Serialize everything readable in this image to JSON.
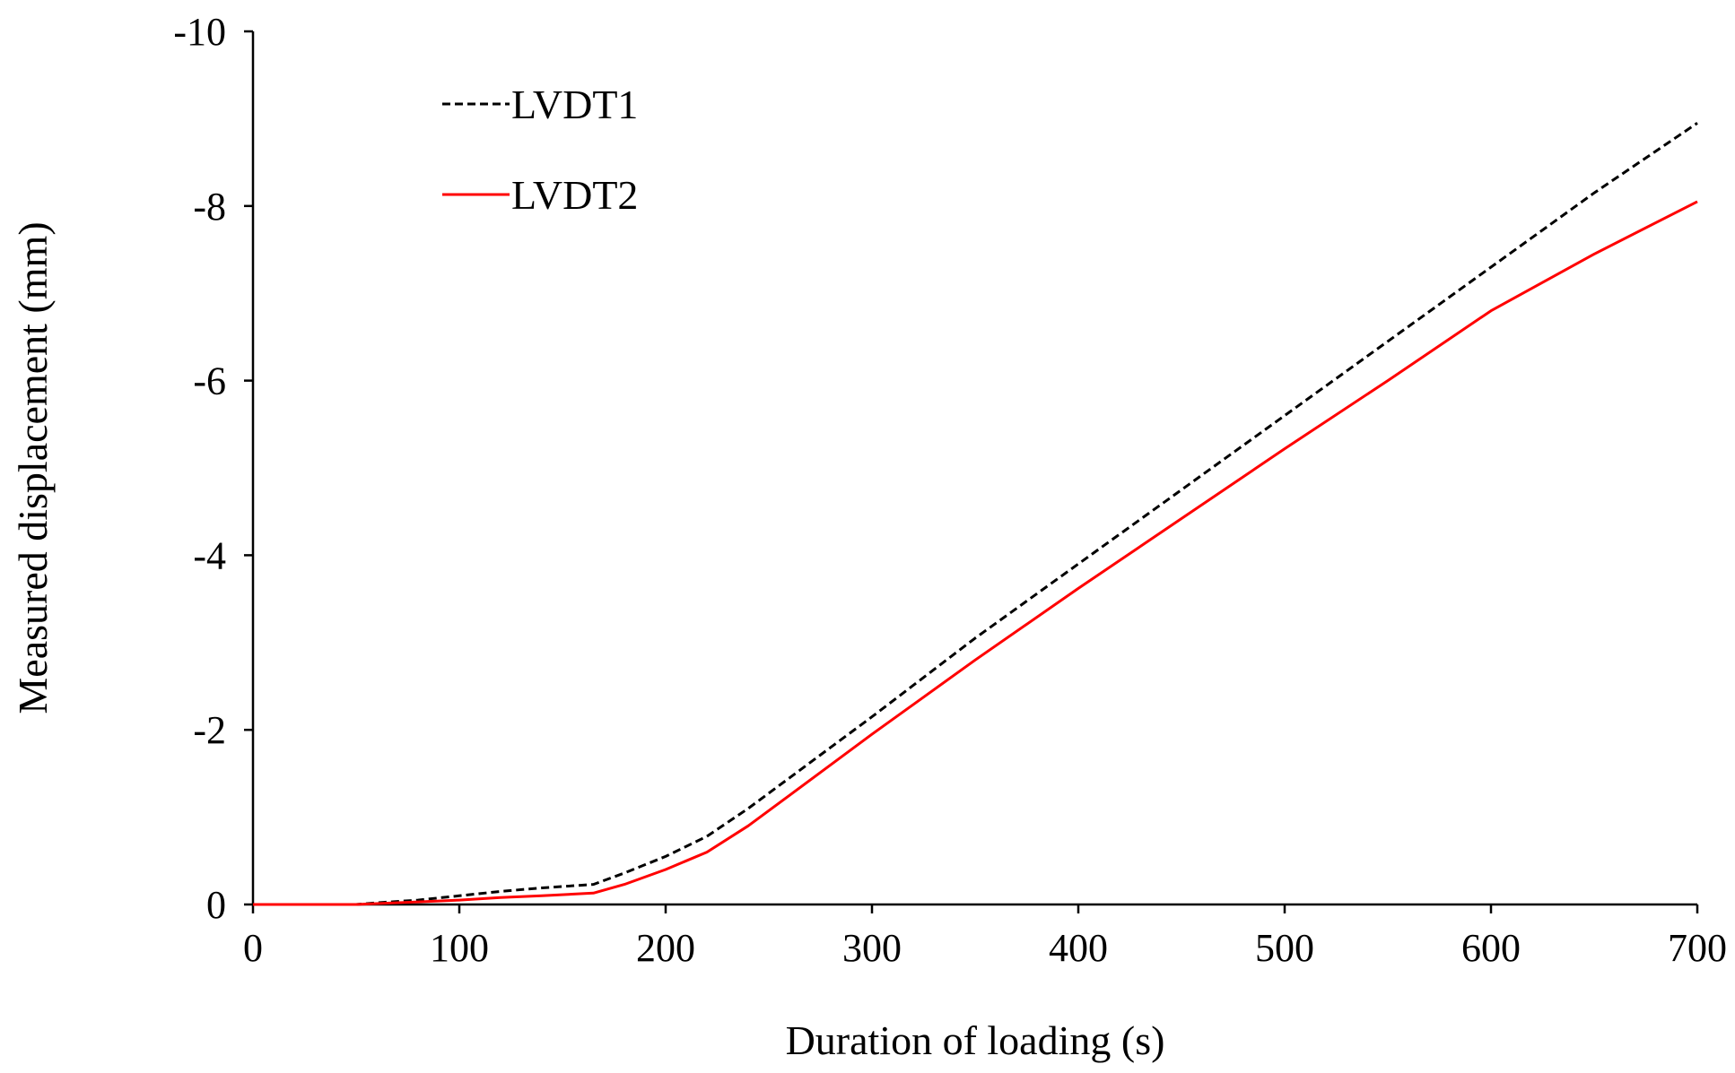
{
  "chart_data": {
    "type": "line",
    "title": "",
    "xlabel": "Duration of loading (s)",
    "ylabel": "Measured displacement (mm)",
    "xlim": [
      0,
      700
    ],
    "ylim": [
      0,
      -10
    ],
    "y_axis_inverted": true,
    "grid": false,
    "legend_position": "top-left",
    "x_ticks": [
      "0",
      "100",
      "200",
      "300",
      "400",
      "500",
      "600",
      "700"
    ],
    "y_ticks": [
      "0",
      "-2",
      "-4",
      "-6",
      "-8",
      "-10"
    ],
    "series": [
      {
        "name": "LVDT1",
        "color": "#000000",
        "style": "dashed",
        "x": [
          0,
          50,
          60,
          80,
          100,
          120,
          140,
          165,
          180,
          200,
          220,
          240,
          260,
          280,
          300,
          350,
          400,
          450,
          500,
          550,
          600,
          650,
          700
        ],
        "y": [
          0,
          0,
          -0.02,
          -0.05,
          -0.1,
          -0.15,
          -0.19,
          -0.23,
          -0.36,
          -0.55,
          -0.78,
          -1.1,
          -1.45,
          -1.8,
          -2.15,
          -3.05,
          -3.9,
          -4.75,
          -5.6,
          -6.45,
          -7.3,
          -8.15,
          -8.95
        ]
      },
      {
        "name": "LVDT2",
        "color": "#ff0000",
        "style": "solid",
        "x": [
          0,
          50,
          60,
          80,
          100,
          120,
          140,
          165,
          180,
          200,
          220,
          240,
          260,
          280,
          300,
          350,
          400,
          450,
          500,
          550,
          600,
          650,
          700
        ],
        "y": [
          0,
          0,
          -0.01,
          -0.03,
          -0.05,
          -0.08,
          -0.1,
          -0.13,
          -0.23,
          -0.4,
          -0.6,
          -0.9,
          -1.25,
          -1.6,
          -1.95,
          -2.8,
          -3.62,
          -4.42,
          -5.22,
          -6.0,
          -6.8,
          -7.45,
          -8.05
        ]
      }
    ]
  }
}
